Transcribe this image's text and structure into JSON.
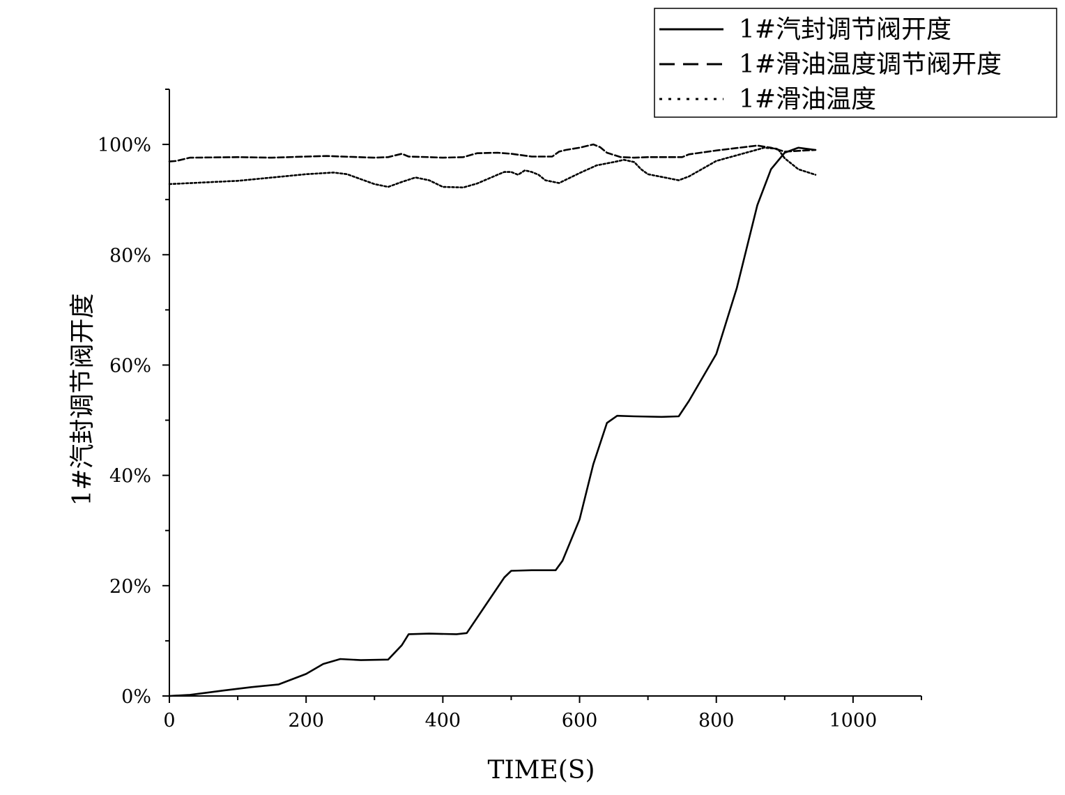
{
  "chart_data": {
    "type": "line",
    "xlabel": "TIME(S)",
    "ylabel": "1#汽封调节阀开度",
    "xlim": [
      0,
      1100
    ],
    "ylim": [
      0,
      110
    ],
    "x_ticks": [
      "0",
      "200",
      "400",
      "600",
      "800",
      "1000"
    ],
    "y_ticks": [
      "0%",
      "20%",
      "40%",
      "60%",
      "80%",
      "100%"
    ],
    "grid": false,
    "legend_position": "top-right",
    "colors": {
      "line": "#000000",
      "frame": "#000000"
    },
    "series": [
      {
        "name": "1#汽封调节阀开度",
        "style": "solid",
        "x": [
          0,
          30,
          80,
          120,
          160,
          200,
          225,
          250,
          280,
          320,
          340,
          350,
          380,
          420,
          435,
          460,
          490,
          500,
          530,
          565,
          575,
          600,
          620,
          640,
          655,
          680,
          720,
          745,
          760,
          800,
          830,
          860,
          880,
          900,
          920,
          945
        ],
        "y": [
          0,
          0.2,
          1.0,
          1.6,
          2.1,
          4.0,
          5.8,
          6.7,
          6.5,
          6.6,
          9.2,
          11.2,
          11.3,
          11.2,
          11.4,
          16.0,
          21.5,
          22.7,
          22.8,
          22.8,
          24.5,
          32.0,
          42.0,
          49.5,
          50.8,
          50.7,
          50.6,
          50.7,
          53.5,
          62.0,
          74.0,
          89.0,
          95.5,
          98.5,
          99.4,
          99.0
        ]
      },
      {
        "name": "1#滑油温度调节阀开度",
        "style": "dashed",
        "x": [
          0,
          10,
          30,
          100,
          150,
          200,
          230,
          300,
          320,
          340,
          350,
          380,
          400,
          430,
          450,
          480,
          500,
          530,
          560,
          570,
          580,
          600,
          620,
          630,
          640,
          660,
          680,
          700,
          750,
          760,
          800,
          860,
          880,
          900,
          945
        ],
        "y": [
          96.9,
          97.0,
          97.6,
          97.7,
          97.6,
          97.8,
          97.9,
          97.6,
          97.7,
          98.3,
          97.8,
          97.7,
          97.6,
          97.7,
          98.4,
          98.5,
          98.3,
          97.8,
          97.8,
          98.7,
          99.0,
          99.4,
          100.0,
          99.5,
          98.5,
          97.7,
          97.6,
          97.7,
          97.7,
          98.2,
          98.9,
          99.8,
          99.4,
          98.7,
          99.0
        ]
      },
      {
        "name": "1#滑油温度",
        "style": "dotted",
        "x": [
          0,
          100,
          200,
          240,
          260,
          300,
          320,
          340,
          360,
          380,
          400,
          430,
          450,
          480,
          490,
          500,
          510,
          520,
          530,
          540,
          550,
          570,
          600,
          625,
          650,
          665,
          680,
          690,
          700,
          745,
          760,
          800,
          870,
          890,
          900,
          920,
          945
        ],
        "y": [
          92.8,
          93.4,
          94.6,
          94.9,
          94.6,
          92.8,
          92.3,
          93.2,
          94.0,
          93.5,
          92.3,
          92.2,
          92.9,
          94.5,
          95.0,
          95.0,
          94.5,
          95.3,
          95.0,
          94.5,
          93.5,
          93.0,
          94.8,
          96.2,
          96.8,
          97.2,
          96.8,
          95.5,
          94.6,
          93.5,
          94.2,
          97.0,
          99.4,
          99.2,
          97.5,
          95.5,
          94.5
        ]
      }
    ]
  }
}
